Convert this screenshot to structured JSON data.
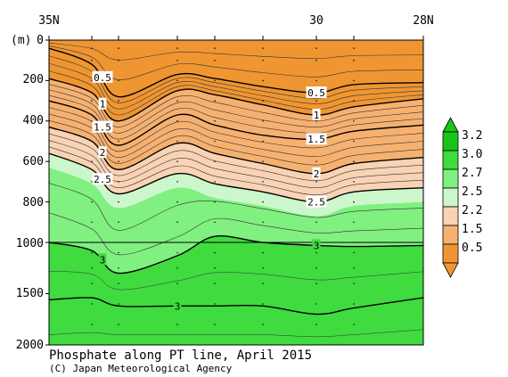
{
  "title": "Phosphate along PT line, April 2015",
  "credit": "(C) Japan Meteorological Agency",
  "chart_data": {
    "type": "heatmap",
    "title": "Phosphate along PT line, April 2015",
    "x_ticks": [
      "35N",
      "30",
      "28N"
    ],
    "x_tick_values": [
      35,
      30,
      28
    ],
    "xlim": [
      35,
      28
    ],
    "y_unit_label": "(m)",
    "y_ticks": [
      0,
      200,
      400,
      600,
      800,
      1000,
      1500,
      2000
    ],
    "ylim": [
      0,
      2000
    ],
    "y_scale_note": "0-1000 m expanded, 1000-2000 m compressed",
    "station_latitudes": [
      35.0,
      34.2,
      33.7,
      32.6,
      31.9,
      31.0,
      30.0,
      29.3,
      28.0
    ],
    "colorbar": {
      "labels": [
        "3.2",
        "3.0",
        "2.7",
        "2.5",
        "2.2",
        "1.5",
        "0.5"
      ],
      "colors": [
        "#19c419",
        "#3fdb3f",
        "#80f080",
        "#ccf7cc",
        "#f9d3b5",
        "#f6b170",
        "#ef9632"
      ]
    },
    "contour_labels": [
      "0.5",
      "1",
      "1.5",
      "2",
      "2.5",
      "3"
    ],
    "contours": [
      {
        "level": 0.5,
        "x": [
          35.0,
          34.2,
          33.7,
          32.6,
          31.9,
          31.0,
          30.0,
          29.3,
          28.0
        ],
        "depth": [
          40,
          120,
          280,
          170,
          190,
          230,
          260,
          220,
          210
        ]
      },
      {
        "level": 1.0,
        "x": [
          35.0,
          34.2,
          33.7,
          32.6,
          31.9,
          31.0,
          30.0,
          29.3,
          28.0
        ],
        "depth": [
          190,
          260,
          400,
          250,
          270,
          320,
          370,
          330,
          290
        ]
      },
      {
        "level": 1.5,
        "x": [
          35.0,
          34.2,
          33.7,
          32.6,
          31.9,
          31.0,
          30.0,
          29.3,
          28.0
        ],
        "depth": [
          300,
          370,
          520,
          370,
          420,
          470,
          490,
          450,
          420
        ]
      },
      {
        "level": 2.0,
        "x": [
          35.0,
          34.2,
          33.7,
          32.6,
          31.9,
          31.0,
          30.0,
          29.3,
          28.0
        ],
        "depth": [
          430,
          500,
          640,
          510,
          560,
          610,
          660,
          610,
          580
        ]
      },
      {
        "level": 2.5,
        "x": [
          35.0,
          34.2,
          33.7,
          32.6,
          31.9,
          31.0,
          30.0,
          29.3,
          28.0
        ],
        "depth": [
          560,
          640,
          760,
          660,
          710,
          750,
          800,
          750,
          730
        ]
      },
      {
        "level": 3.0,
        "x": [
          35.0,
          34.2,
          33.7,
          32.6,
          31.9,
          31.0,
          30.0,
          29.3,
          28.0
        ],
        "depth": [
          1000,
          1080,
          1300,
          1130,
          970,
          1000,
          1030,
          1040,
          1030
        ]
      },
      {
        "level": 3.0,
        "x": [
          35.0,
          34.2,
          33.7,
          32.6,
          31.9,
          31.0,
          30.0,
          29.3,
          28.0
        ],
        "depth": [
          1560,
          1540,
          1620,
          1620,
          1620,
          1620,
          1700,
          1640,
          1540
        ]
      }
    ],
    "grid": false,
    "legend": "right"
  }
}
